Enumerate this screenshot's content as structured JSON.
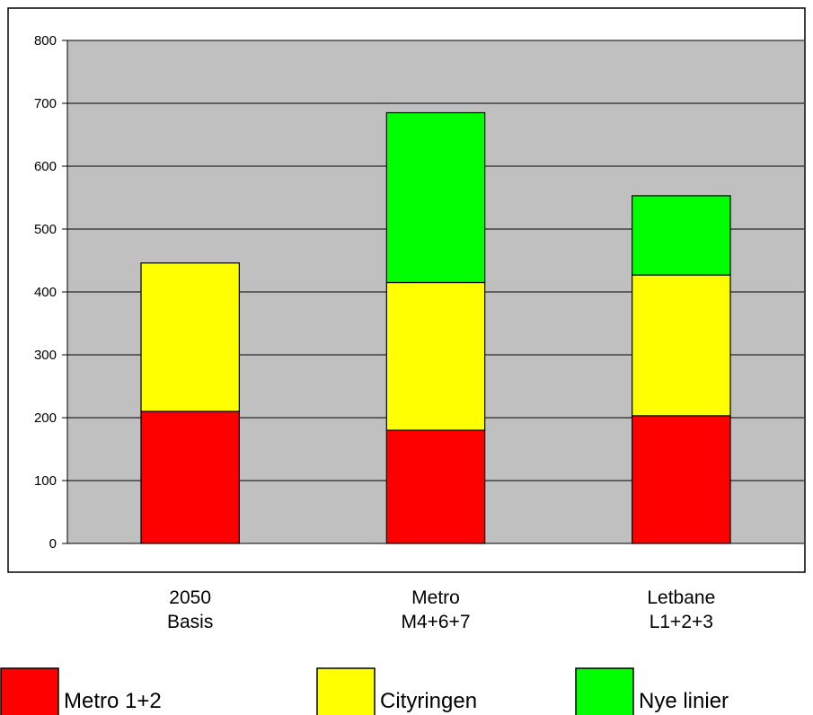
{
  "chart_data": {
    "type": "bar",
    "stacked": true,
    "categories": [
      [
        "2050",
        "Basis"
      ],
      [
        "Metro",
        "M4+6+7"
      ],
      [
        "Letbane",
        "L1+2+3"
      ]
    ],
    "series": [
      {
        "name": "Metro 1+2",
        "color": "#ff0000",
        "values": [
          210,
          180,
          203
        ]
      },
      {
        "name": "Cityringen",
        "color": "#ffff00",
        "values": [
          236,
          235,
          224
        ]
      },
      {
        "name": "Nye linier",
        "color": "#00ff00",
        "values": [
          0,
          270,
          126
        ]
      }
    ],
    "ylim": [
      0,
      800
    ],
    "yticks": [
      "0",
      "100",
      "200",
      "300",
      "400",
      "500",
      "600",
      "700",
      "800"
    ],
    "grid": true,
    "plot_background": "#c0c0c0",
    "legend_position": "bottom"
  }
}
